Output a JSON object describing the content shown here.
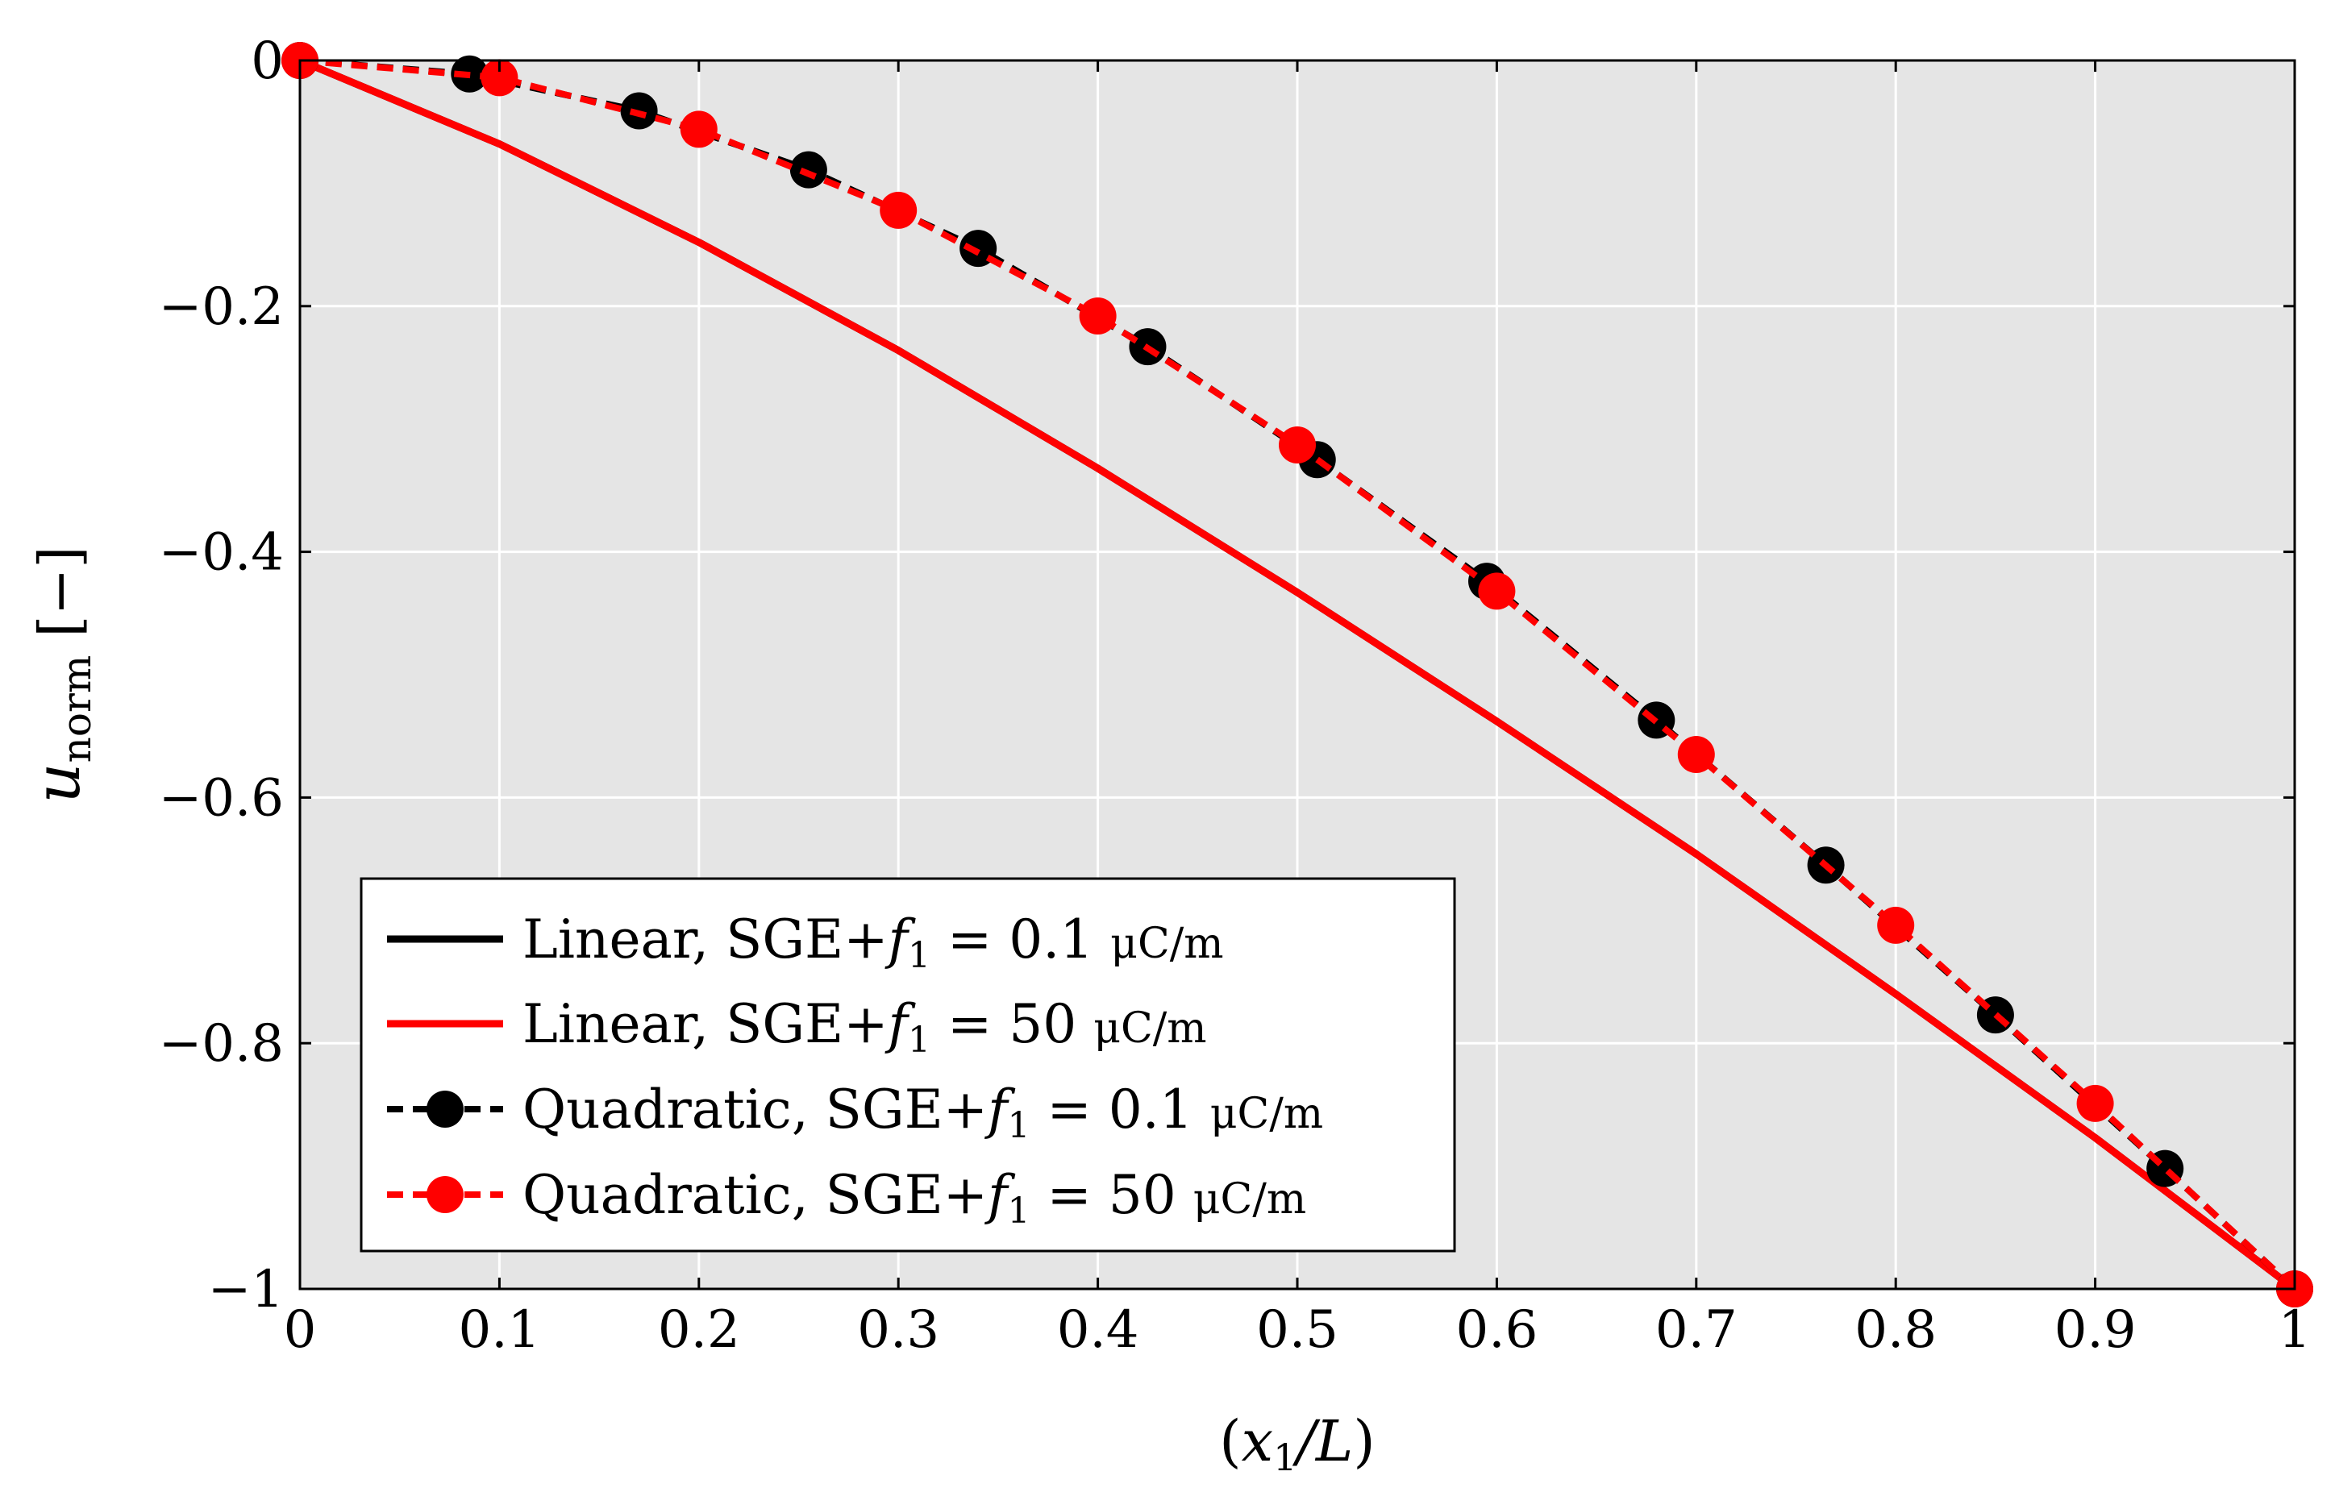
{
  "chart_data": {
    "type": "line",
    "title": "",
    "xlabel": "(x₁/L)",
    "ylabel_main": "u",
    "ylabel_sub": "norm",
    "ylabel_unit": "[−]",
    "xlim": [
      0,
      1
    ],
    "ylim": [
      -1,
      0
    ],
    "grid": true,
    "background": "#e5e5e5",
    "x_ticks": [
      0,
      0.1,
      0.2,
      0.3,
      0.4,
      0.5,
      0.6,
      0.7,
      0.8,
      0.9,
      1
    ],
    "x_tick_labels": [
      "0",
      "0.1",
      "0.2",
      "0.3",
      "0.4",
      "0.5",
      "0.6",
      "0.7",
      "0.8",
      "0.9",
      "1"
    ],
    "y_ticks": [
      0,
      -0.2,
      -0.4,
      -0.6,
      -0.8,
      -1
    ],
    "y_tick_labels": [
      "0",
      "−0.2",
      "−0.4",
      "−0.6",
      "−0.8",
      "−1"
    ],
    "legend_position": "bottom-left",
    "series": [
      {
        "name": "Linear, SGE+f1 = 0.1 μC/m",
        "legend_prefix": "Linear, SGE+",
        "legend_suffix": " = 0.1 ",
        "legend_unit": "μC/m",
        "color": "#000000",
        "style": "solid",
        "marker": false,
        "x": [
          0,
          0.1,
          0.2,
          0.3,
          0.4,
          0.5,
          0.6,
          0.7,
          0.8,
          0.9,
          1
        ],
        "y": [
          0,
          -0.068,
          -0.148,
          -0.236,
          -0.332,
          -0.433,
          -0.538,
          -0.646,
          -0.76,
          -0.877,
          -1
        ]
      },
      {
        "name": "Linear, SGE+f1 = 50 μC/m",
        "legend_prefix": "Linear, SGE+",
        "legend_suffix": " = 50 ",
        "legend_unit": "μC/m",
        "color": "#ff0000",
        "style": "solid",
        "marker": false,
        "x": [
          0,
          0.1,
          0.2,
          0.3,
          0.4,
          0.5,
          0.6,
          0.7,
          0.8,
          0.9,
          1
        ],
        "y": [
          0,
          -0.068,
          -0.148,
          -0.236,
          -0.332,
          -0.433,
          -0.538,
          -0.646,
          -0.76,
          -0.877,
          -1
        ]
      },
      {
        "name": "Quadratic, SGE+f1 = 0.1 μC/m",
        "legend_prefix": "Quadratic, SGE+",
        "legend_suffix": " = 0.1 ",
        "legend_unit": "μC/m",
        "color": "#000000",
        "style": "dashed",
        "marker": true,
        "x": [
          0,
          0.085,
          0.17,
          0.255,
          0.34,
          0.425,
          0.51,
          0.595,
          0.68,
          0.765,
          0.85,
          0.935,
          1
        ],
        "y": [
          0,
          -0.011,
          -0.041,
          -0.089,
          -0.153,
          -0.233,
          -0.325,
          -0.424,
          -0.537,
          -0.655,
          -0.777,
          -0.902,
          -1
        ]
      },
      {
        "name": "Quadratic, SGE+f1 = 50 μC/m",
        "legend_prefix": "Quadratic, SGE+",
        "legend_suffix": " = 50 ",
        "legend_unit": "μC/m",
        "color": "#ff0000",
        "style": "dashed",
        "marker": true,
        "x": [
          0,
          0.1,
          0.2,
          0.3,
          0.4,
          0.5,
          0.6,
          0.7,
          0.8,
          0.9,
          1
        ],
        "y": [
          0,
          -0.014,
          -0.056,
          -0.122,
          -0.208,
          -0.313,
          -0.432,
          -0.565,
          -0.704,
          -0.849,
          -1
        ]
      }
    ]
  }
}
